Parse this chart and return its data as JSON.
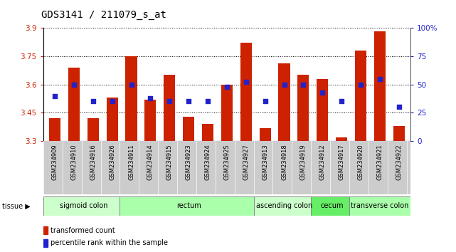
{
  "title": "GDS3141 / 211079_s_at",
  "samples": [
    "GSM234909",
    "GSM234910",
    "GSM234916",
    "GSM234926",
    "GSM234911",
    "GSM234914",
    "GSM234915",
    "GSM234923",
    "GSM234924",
    "GSM234925",
    "GSM234927",
    "GSM234913",
    "GSM234918",
    "GSM234919",
    "GSM234912",
    "GSM234917",
    "GSM234920",
    "GSM234921",
    "GSM234922"
  ],
  "bar_values": [
    3.42,
    3.69,
    3.42,
    3.53,
    3.75,
    3.52,
    3.65,
    3.43,
    3.39,
    3.6,
    3.82,
    3.37,
    3.71,
    3.65,
    3.63,
    3.32,
    3.78,
    3.88,
    3.38
  ],
  "percentile_values": [
    40,
    50,
    35,
    35,
    50,
    38,
    35,
    35,
    35,
    48,
    52,
    35,
    50,
    50,
    43,
    35,
    50,
    55,
    30
  ],
  "ylim": [
    3.3,
    3.9
  ],
  "yticks": [
    3.3,
    3.45,
    3.6,
    3.75,
    3.9
  ],
  "right_yticks": [
    0,
    25,
    50,
    75,
    100
  ],
  "tissue_groups": [
    {
      "label": "sigmoid colon",
      "start": 0,
      "end": 4,
      "color": "#ccffcc"
    },
    {
      "label": "rectum",
      "start": 4,
      "end": 11,
      "color": "#aaffaa"
    },
    {
      "label": "ascending colon",
      "start": 11,
      "end": 14,
      "color": "#ccffcc"
    },
    {
      "label": "cecum",
      "start": 14,
      "end": 16,
      "color": "#66ee66"
    },
    {
      "label": "transverse colon",
      "start": 16,
      "end": 19,
      "color": "#aaffaa"
    }
  ],
  "bar_color": "#cc2200",
  "dot_color": "#2222cc",
  "bg_color": "#ffffff",
  "xlabel_bg": "#cccccc",
  "ylabel_color": "#cc2200",
  "right_ylabel_color": "#2222cc",
  "title_fontsize": 10,
  "bar_label_fontsize": 6,
  "tissue_fontsize": 7,
  "legend_fontsize": 7
}
